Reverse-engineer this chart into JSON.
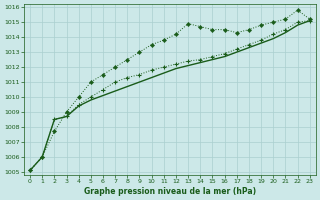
{
  "xlabel": "Graphe pression niveau de la mer (hPa)",
  "xlim": [
    -0.5,
    23.5
  ],
  "ylim": [
    1004.8,
    1016.2
  ],
  "yticks": [
    1005,
    1006,
    1007,
    1008,
    1009,
    1010,
    1011,
    1012,
    1013,
    1014,
    1015,
    1016
  ],
  "xticks": [
    0,
    1,
    2,
    3,
    4,
    5,
    6,
    7,
    8,
    9,
    10,
    11,
    12,
    13,
    14,
    15,
    16,
    17,
    18,
    19,
    20,
    21,
    22,
    23
  ],
  "bg_color": "#cce8e8",
  "line_color": "#1a5c1a",
  "grid_color": "#aacfcf",
  "series1_x": [
    0,
    1,
    2,
    3,
    4,
    5,
    6,
    7,
    8,
    9,
    10,
    11,
    12,
    13,
    14,
    15,
    16,
    17,
    18,
    19,
    20,
    21,
    22,
    23
  ],
  "series1_y": [
    1005.1,
    1006.0,
    1007.7,
    1009.0,
    1010.0,
    1011.0,
    1011.5,
    1012.0,
    1012.5,
    1013.0,
    1013.5,
    1013.8,
    1014.2,
    1014.9,
    1014.7,
    1014.5,
    1014.5,
    1014.3,
    1014.5,
    1014.8,
    1015.0,
    1015.2,
    1015.8,
    1015.2
  ],
  "series2_x": [
    0,
    1,
    2,
    3,
    4,
    5,
    6,
    7,
    8,
    9,
    10,
    11,
    12,
    13,
    14,
    15,
    16,
    17,
    18,
    19,
    20,
    21,
    22,
    23
  ],
  "series2_y": [
    1005.1,
    1006.0,
    1008.5,
    1008.7,
    1009.5,
    1010.0,
    1010.5,
    1011.0,
    1011.3,
    1011.5,
    1011.8,
    1012.0,
    1012.2,
    1012.4,
    1012.5,
    1012.7,
    1012.9,
    1013.2,
    1013.5,
    1013.8,
    1014.2,
    1014.5,
    1015.0,
    1015.1
  ],
  "series3_x": [
    0,
    1,
    2,
    3,
    4,
    5,
    6,
    7,
    8,
    9,
    10,
    11,
    12,
    13,
    14,
    15,
    16,
    17,
    18,
    19,
    20,
    21,
    22,
    23
  ],
  "series3_y": [
    1005.1,
    1006.0,
    1008.5,
    1008.7,
    1009.4,
    1009.8,
    1010.1,
    1010.4,
    1010.7,
    1011.0,
    1011.3,
    1011.6,
    1011.9,
    1012.1,
    1012.3,
    1012.5,
    1012.7,
    1013.0,
    1013.3,
    1013.6,
    1013.9,
    1014.3,
    1014.8,
    1015.1
  ]
}
